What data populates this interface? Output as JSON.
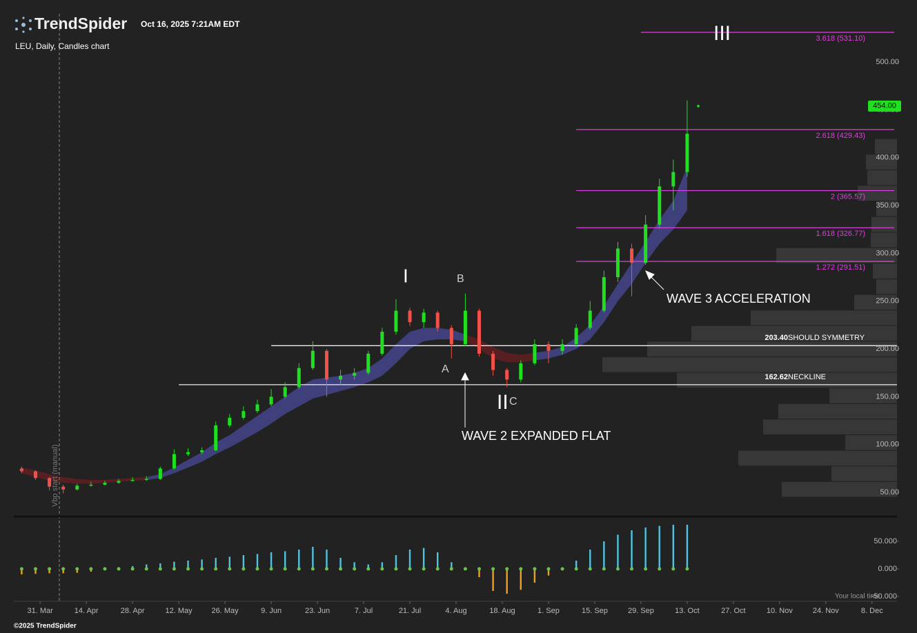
{
  "header": {
    "brand": "TrendSpider",
    "timestamp": "Oct 16, 2025 7:21AM EDT",
    "copyright": "©2025 TrendSpider",
    "timezone": "Your local time"
  },
  "chart_data": {
    "type": "candlestick",
    "title": "LEU, Daily, Candles chart",
    "vbp_label": "Vbp start (manual)",
    "x": [
      -4,
      -1,
      2,
      5,
      8,
      11,
      14,
      17,
      20,
      23,
      26,
      29,
      32,
      35,
      38,
      41,
      44,
      47,
      50,
      53,
      56,
      59,
      62,
      65,
      68,
      71,
      74,
      77,
      80,
      83,
      86,
      89,
      92,
      95,
      98,
      101,
      104,
      107,
      110,
      113,
      116,
      119,
      122,
      125,
      128,
      131,
      134,
      137,
      140
    ],
    "open": [
      75,
      72,
      65,
      56,
      53,
      57,
      58,
      60,
      62,
      63,
      64,
      75,
      90,
      92,
      94,
      120,
      128,
      135,
      142,
      150,
      160,
      180,
      198,
      168,
      172,
      175,
      195,
      218,
      240,
      228,
      238,
      222,
      205,
      240,
      195,
      178,
      168,
      185,
      205,
      198,
      205,
      222,
      240,
      275,
      305,
      290,
      330,
      370,
      385
    ],
    "high": [
      77,
      73,
      66,
      58,
      59,
      61,
      62,
      64,
      66,
      67,
      77,
      95,
      96,
      97,
      124,
      132,
      140,
      147,
      158,
      165,
      185,
      208,
      200,
      178,
      180,
      198,
      222,
      252,
      243,
      242,
      240,
      225,
      258,
      242,
      198,
      180,
      188,
      210,
      208,
      210,
      226,
      250,
      282,
      312,
      310,
      340,
      378,
      398,
      460
    ],
    "low": [
      70,
      63,
      52,
      49,
      52,
      56,
      57,
      59,
      61,
      62,
      63,
      74,
      88,
      90,
      93,
      118,
      126,
      133,
      140,
      148,
      158,
      178,
      150,
      162,
      168,
      173,
      193,
      215,
      224,
      222,
      218,
      190,
      203,
      192,
      172,
      160,
      165,
      183,
      185,
      194,
      202,
      220,
      238,
      270,
      255,
      288,
      326,
      345,
      380
    ],
    "close": [
      72,
      65,
      56,
      53,
      57,
      58,
      60,
      62,
      63,
      64,
      75,
      90,
      92,
      94,
      120,
      128,
      135,
      142,
      150,
      160,
      180,
      198,
      168,
      172,
      175,
      195,
      218,
      240,
      228,
      238,
      222,
      205,
      240,
      195,
      178,
      168,
      185,
      205,
      198,
      205,
      222,
      240,
      275,
      305,
      290,
      330,
      370,
      385,
      425
    ],
    "up_color": "#1fe01f",
    "down_color": "#f0524a",
    "xlim": [
      -5.7,
      185.4
    ],
    "xticks": [
      {
        "value": 0,
        "label": "31. Mar"
      },
      {
        "value": 10,
        "label": "14. Apr"
      },
      {
        "value": 20,
        "label": "28. Apr"
      },
      {
        "value": 30,
        "label": "12. May"
      },
      {
        "value": 40,
        "label": "26. May"
      },
      {
        "value": 50,
        "label": "9. Jun"
      },
      {
        "value": 60,
        "label": "23. Jun"
      },
      {
        "value": 70,
        "label": "7. Jul"
      },
      {
        "value": 80,
        "label": "21. Jul"
      },
      {
        "value": 90,
        "label": "4. Aug"
      },
      {
        "value": 100,
        "label": "18. Aug"
      },
      {
        "value": 110,
        "label": "1. Sep"
      },
      {
        "value": 120,
        "label": "15. Sep"
      },
      {
        "value": 130,
        "label": "29. Sep"
      },
      {
        "value": 140,
        "label": "13. Oct"
      },
      {
        "value": 150,
        "label": "27. Oct"
      },
      {
        "value": 160,
        "label": "10. Nov"
      },
      {
        "value": 170,
        "label": "24. Nov"
      },
      {
        "value": 180,
        "label": "8. Dec"
      }
    ],
    "ylim": [
      25.5,
      550.5
    ],
    "yticks": [
      {
        "value": 50,
        "label": "50.00"
      },
      {
        "value": 100,
        "label": "100.00"
      },
      {
        "value": 150,
        "label": "150.00"
      },
      {
        "value": 200,
        "label": "200.00"
      },
      {
        "value": 250,
        "label": "250.00"
      },
      {
        "value": 300,
        "label": "300.00"
      },
      {
        "value": 350,
        "label": "350.00"
      },
      {
        "value": 400,
        "label": "400.00"
      },
      {
        "value": 450,
        "label": "450.00"
      },
      {
        "value": 500,
        "label": "500.00"
      }
    ],
    "last_price": {
      "value": 454,
      "label": "454.00"
    },
    "levels": [
      {
        "value": 203.4,
        "label": "203.40",
        "name": "SHOULD SYMMETRY",
        "start": 50
      },
      {
        "value": 162.62,
        "label": "162.62",
        "name": "NECKLINE",
        "start": 30
      }
    ],
    "fib": [
      {
        "value": 531.1,
        "label": "3.618 (531.10)",
        "start": 130
      },
      {
        "value": 429.43,
        "label": "2.618 (429.43)",
        "start": 116
      },
      {
        "value": 365.57,
        "label": "2 (365.57)",
        "start": 116
      },
      {
        "value": 326.77,
        "label": "1.618 (326.77)",
        "start": 116
      },
      {
        "value": 291.51,
        "label": "1.272 (291.51)",
        "start": 116
      }
    ],
    "fib_color": "#e03ee0",
    "annotations": [
      "I",
      "B",
      "A",
      "II",
      "C",
      "III",
      "WAVE 3 ACCELERATION",
      "WAVE 2 EXPANDED FLAT"
    ],
    "band_bull": {
      "color": "#4a4a9a",
      "lower": [
        null,
        null,
        null,
        null,
        null,
        null,
        null,
        null,
        null,
        63,
        65,
        70,
        76,
        82,
        90,
        97,
        105,
        113,
        122,
        132,
        140,
        148,
        152,
        156,
        160,
        165,
        172,
        185,
        200,
        208,
        210,
        210,
        208,
        null,
        null,
        null,
        null,
        188,
        190,
        194,
        200,
        210,
        228,
        250,
        268,
        290,
        310,
        325,
        345
      ],
      "upper": [
        null,
        null,
        null,
        null,
        null,
        null,
        null,
        null,
        null,
        66,
        69,
        76,
        84,
        92,
        102,
        110,
        120,
        130,
        140,
        150,
        160,
        168,
        170,
        172,
        175,
        180,
        190,
        205,
        218,
        222,
        222,
        220,
        215,
        null,
        null,
        null,
        null,
        196,
        198,
        202,
        212,
        225,
        245,
        268,
        290,
        312,
        335,
        355,
        390
      ]
    },
    "band_bear": {
      "color": "#6a1f22",
      "lower": [
        70,
        66,
        62,
        60,
        59,
        59,
        60,
        61,
        62,
        63,
        null,
        null,
        null,
        null,
        null,
        null,
        null,
        null,
        null,
        null,
        null,
        null,
        null,
        null,
        null,
        null,
        null,
        null,
        null,
        null,
        null,
        null,
        208,
        200,
        190,
        186,
        186,
        188,
        null,
        null,
        null,
        null,
        null,
        null,
        null,
        null,
        null,
        null,
        null
      ],
      "upper": [
        76,
        73,
        69,
        66,
        64,
        63,
        63,
        64,
        65,
        66,
        null,
        null,
        null,
        null,
        null,
        null,
        null,
        null,
        null,
        null,
        null,
        null,
        null,
        null,
        null,
        null,
        null,
        null,
        null,
        null,
        null,
        null,
        215,
        210,
        202,
        196,
        194,
        196,
        null,
        null,
        null,
        null,
        null,
        null,
        null,
        null,
        null,
        null,
        null
      ]
    },
    "volume_profile": {
      "color": "#3b3b3b",
      "bins": [
        45,
        61.3,
        77.6,
        93.9,
        110.2,
        126.5,
        142.8,
        159.1,
        175.4,
        191.7,
        208,
        224.3,
        240.6,
        256.9,
        273.2,
        289.5,
        305.8,
        322.1,
        338.4,
        354.7,
        371,
        387.3,
        403.6,
        419.9
      ],
      "values": [
        167,
        95,
        230,
        75,
        194,
        172,
        98,
        319,
        427,
        362,
        298,
        212,
        62,
        30,
        35,
        175,
        38,
        37,
        30,
        57,
        43,
        45,
        32
      ]
    },
    "indicator": {
      "type": "bar",
      "pos_color": "#4fc3e0",
      "neg_color": "#f0a020",
      "dot_color": "#6cc24a",
      "values": [
        -10,
        -9,
        -8,
        -8,
        -7,
        -5,
        0,
        3,
        5,
        8,
        10,
        13,
        15,
        17,
        20,
        22,
        25,
        27,
        30,
        32,
        35,
        40,
        35,
        20,
        12,
        8,
        12,
        25,
        35,
        38,
        30,
        12,
        2,
        -15,
        -40,
        -45,
        -38,
        -25,
        -12,
        0,
        15,
        35,
        50,
        62,
        70,
        75,
        78,
        80,
        80
      ],
      "ylim": [
        -56.25,
        91.25
      ],
      "yticks": [
        {
          "value": 50,
          "label": "50.000"
        },
        {
          "value": 0,
          "label": "0.000"
        },
        {
          "value": -50,
          "label": "-50.000"
        }
      ]
    }
  }
}
